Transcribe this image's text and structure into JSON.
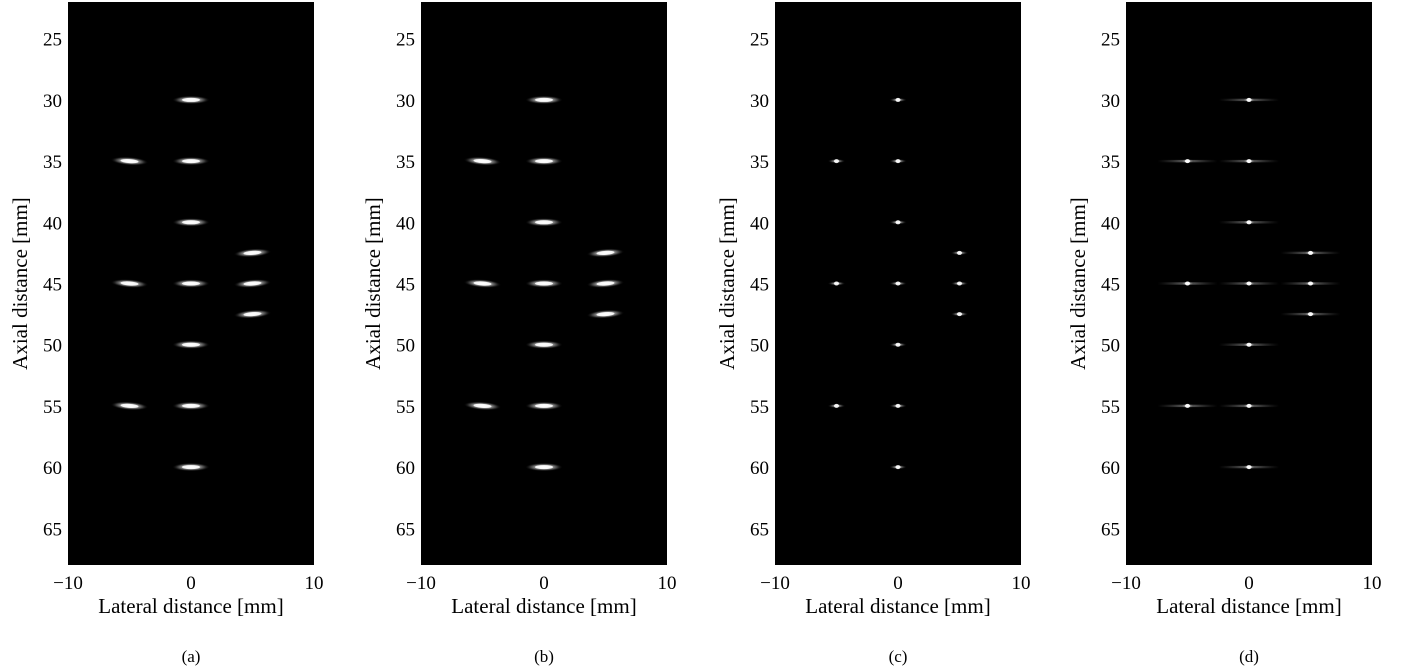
{
  "chart_data": [
    {
      "type": "scatter",
      "caption": "(a)",
      "xlabel": "Lateral distance [mm]",
      "ylabel": "Axial distance [mm]",
      "xlim": [
        -10,
        10
      ],
      "ylim": [
        22,
        68
      ],
      "y_inverted": true,
      "xticks": [
        -10,
        0,
        10
      ],
      "xtick_labels": [
        "−10",
        "0",
        "10"
      ],
      "yticks": [
        25,
        30,
        35,
        40,
        45,
        50,
        55,
        60,
        65
      ],
      "grid": false,
      "background": "#000000",
      "blob_style": "wide-bright",
      "points": [
        {
          "x": 0,
          "y": 30
        },
        {
          "x": 0,
          "y": 35
        },
        {
          "x": 0,
          "y": 40
        },
        {
          "x": 0,
          "y": 45
        },
        {
          "x": 0,
          "y": 50
        },
        {
          "x": 0,
          "y": 55
        },
        {
          "x": 0,
          "y": 60
        },
        {
          "x": -5,
          "y": 35
        },
        {
          "x": -5,
          "y": 45
        },
        {
          "x": -5,
          "y": 55
        },
        {
          "x": 5,
          "y": 42.5
        },
        {
          "x": 5,
          "y": 45
        },
        {
          "x": 5,
          "y": 47.5
        }
      ]
    },
    {
      "type": "scatter",
      "caption": "(b)",
      "xlabel": "Lateral distance [mm]",
      "ylabel": "Axial distance [mm]",
      "xlim": [
        -10,
        10
      ],
      "ylim": [
        22,
        68
      ],
      "y_inverted": true,
      "xticks": [
        -10,
        0,
        10
      ],
      "xtick_labels": [
        "−10",
        "0",
        "10"
      ],
      "yticks": [
        25,
        30,
        35,
        40,
        45,
        50,
        55,
        60,
        65
      ],
      "grid": false,
      "background": "#000000",
      "blob_style": "wide-bright",
      "points": [
        {
          "x": 0,
          "y": 30
        },
        {
          "x": 0,
          "y": 35
        },
        {
          "x": 0,
          "y": 40
        },
        {
          "x": 0,
          "y": 45
        },
        {
          "x": 0,
          "y": 50
        },
        {
          "x": 0,
          "y": 55
        },
        {
          "x": 0,
          "y": 60
        },
        {
          "x": -5,
          "y": 35
        },
        {
          "x": -5,
          "y": 45
        },
        {
          "x": -5,
          "y": 55
        },
        {
          "x": 5,
          "y": 42.5
        },
        {
          "x": 5,
          "y": 45
        },
        {
          "x": 5,
          "y": 47.5
        }
      ]
    },
    {
      "type": "scatter",
      "caption": "(c)",
      "xlabel": "Lateral distance [mm]",
      "ylabel": "Axial distance [mm]",
      "xlim": [
        -10,
        10
      ],
      "ylim": [
        22,
        68
      ],
      "y_inverted": true,
      "xticks": [
        -10,
        0,
        10
      ],
      "xtick_labels": [
        "−10",
        "0",
        "10"
      ],
      "yticks": [
        25,
        30,
        35,
        40,
        45,
        50,
        55,
        60,
        65
      ],
      "grid": false,
      "background": "#000000",
      "blob_style": "small-dim",
      "points": [
        {
          "x": 0,
          "y": 30
        },
        {
          "x": 0,
          "y": 35
        },
        {
          "x": 0,
          "y": 40
        },
        {
          "x": 0,
          "y": 45
        },
        {
          "x": 0,
          "y": 50
        },
        {
          "x": 0,
          "y": 55
        },
        {
          "x": 0,
          "y": 60
        },
        {
          "x": -5,
          "y": 35
        },
        {
          "x": -5,
          "y": 45
        },
        {
          "x": -5,
          "y": 55
        },
        {
          "x": 5,
          "y": 42.5
        },
        {
          "x": 5,
          "y": 45
        },
        {
          "x": 5,
          "y": 47.5
        }
      ]
    },
    {
      "type": "scatter",
      "caption": "(d)",
      "xlabel": "Lateral distance [mm]",
      "ylabel": "Axial distance [mm]",
      "xlim": [
        -10,
        10
      ],
      "ylim": [
        22,
        68
      ],
      "y_inverted": true,
      "xticks": [
        -10,
        0,
        10
      ],
      "xtick_labels": [
        "−10",
        "0",
        "10"
      ],
      "yticks": [
        25,
        30,
        35,
        40,
        45,
        50,
        55,
        60,
        65
      ],
      "grid": false,
      "background": "#000000",
      "blob_style": "small-sidelobe",
      "points": [
        {
          "x": 0,
          "y": 30
        },
        {
          "x": 0,
          "y": 35
        },
        {
          "x": 0,
          "y": 40
        },
        {
          "x": 0,
          "y": 45
        },
        {
          "x": 0,
          "y": 50
        },
        {
          "x": 0,
          "y": 55
        },
        {
          "x": 0,
          "y": 60
        },
        {
          "x": -5,
          "y": 35
        },
        {
          "x": -5,
          "y": 45
        },
        {
          "x": -5,
          "y": 55
        },
        {
          "x": 5,
          "y": 42.5
        },
        {
          "x": 5,
          "y": 45
        },
        {
          "x": 5,
          "y": 47.5
        }
      ]
    }
  ]
}
